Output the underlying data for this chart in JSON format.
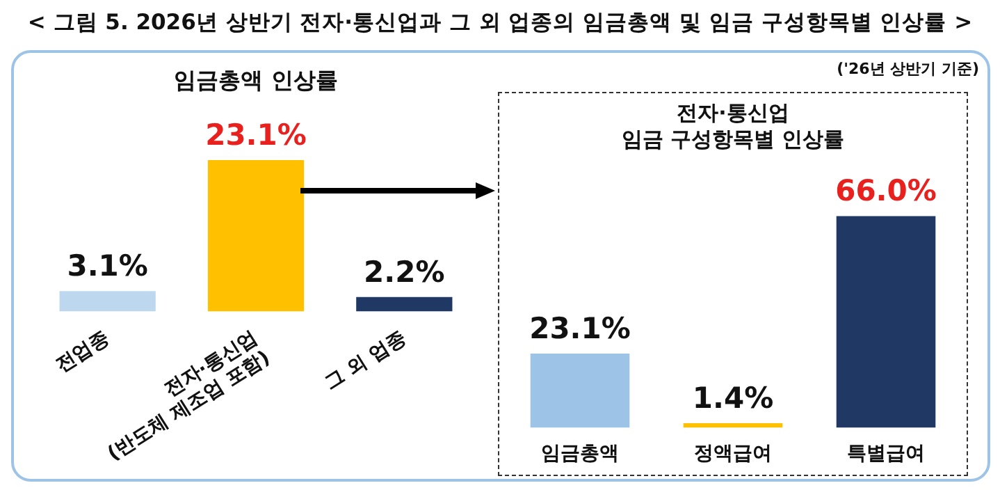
{
  "chart_data": [
    {
      "type": "bar",
      "title": "< 그림 5. 2026년 상반기 전자·통신업과 그 외 업종의 임금총액 및 임금 구성항목별 인상률 >",
      "subtitle": "임금총액 인상률",
      "categories": [
        "전업종",
        "전자·통신업\n(반도체 제조업 포함)",
        "그 외 업종"
      ],
      "values": [
        3.1,
        23.1,
        2.2
      ],
      "colors": [
        "#bdd7ee",
        "#ffc000",
        "#1f3864"
      ],
      "value_labels": [
        "3.1%",
        "23.1%",
        "2.2%"
      ],
      "legend": false
    },
    {
      "type": "bar",
      "title": "전자·통신업\n임금 구성항목별 인상률",
      "annotations": [
        "('26년 상반기 기준)"
      ],
      "categories": [
        "임금총액",
        "정액급여",
        "특별급여"
      ],
      "values": [
        23.1,
        1.4,
        66.0
      ],
      "colors": [
        "#9dc3e6",
        "#ffc000",
        "#1f3864"
      ],
      "value_labels": [
        "23.1%",
        "1.4%",
        "66.0%"
      ],
      "legend": false
    }
  ]
}
